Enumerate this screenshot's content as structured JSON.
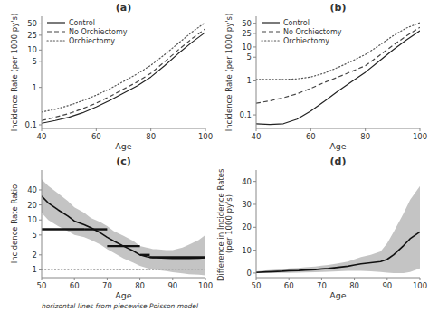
{
  "chart_data": [
    {
      "type": "line",
      "title": "(a)",
      "x_label": "Age",
      "y_label": "Incidence Rate (per 1000 py's)",
      "x": [
        40,
        45,
        50,
        55,
        60,
        65,
        70,
        75,
        80,
        85,
        90,
        95,
        100
      ],
      "series": [
        {
          "name": "Control",
          "color": "#222222",
          "line_style": "solid",
          "values": [
            0.11,
            0.13,
            0.16,
            0.21,
            0.3,
            0.45,
            0.7,
            1.1,
            1.9,
            3.8,
            8.0,
            16,
            30
          ]
        },
        {
          "name": "No Orchiectomy",
          "color": "#444444",
          "line_style": "dashed",
          "values": [
            0.13,
            0.16,
            0.2,
            0.27,
            0.38,
            0.57,
            0.9,
            1.4,
            2.4,
            4.8,
            10,
            20,
            37
          ]
        },
        {
          "name": "Orchiectomy",
          "color": "#555555",
          "line_style": "dotted",
          "values": [
            0.22,
            0.26,
            0.33,
            0.44,
            0.62,
            0.92,
            1.45,
            2.3,
            3.9,
            7.5,
            15,
            30,
            55
          ]
        }
      ],
      "log": "y",
      "xlim": [
        40,
        100
      ],
      "ylim": [
        0.08,
        80
      ],
      "xticks": [
        40,
        60,
        80,
        100
      ],
      "yticks": [
        0.1,
        1,
        5,
        10,
        25,
        50
      ],
      "legend": "upper left",
      "grid": false
    },
    {
      "type": "line",
      "title": "(b)",
      "x_label": "Age",
      "y_label": "Incidence Rate (per 1000 py's)",
      "x": [
        40,
        45,
        50,
        55,
        60,
        65,
        70,
        75,
        80,
        85,
        90,
        95,
        100
      ],
      "series": [
        {
          "name": "Control",
          "color": "#222222",
          "line_style": "solid",
          "values": [
            0.055,
            0.052,
            0.055,
            0.075,
            0.13,
            0.25,
            0.5,
            0.95,
            1.8,
            3.8,
            8.0,
            16,
            30
          ]
        },
        {
          "name": "No Orchiectomy",
          "color": "#444444",
          "line_style": "dashed",
          "values": [
            0.22,
            0.26,
            0.32,
            0.42,
            0.6,
            0.9,
            1.3,
            1.9,
            2.8,
            5.5,
            11,
            21,
            38
          ]
        },
        {
          "name": "Orchiectomy",
          "color": "#555555",
          "line_style": "dotted",
          "values": [
            1.1,
            1.1,
            1.1,
            1.15,
            1.3,
            1.7,
            2.5,
            3.8,
            6.0,
            11,
            21,
            36,
            52
          ]
        }
      ],
      "log": "y",
      "xlim": [
        40,
        100
      ],
      "ylim": [
        0.04,
        80
      ],
      "xticks": [
        40,
        60,
        80,
        100
      ],
      "yticks": [
        0.1,
        1,
        5,
        10,
        25,
        50
      ],
      "legend": "upper left",
      "grid": false
    },
    {
      "type": "line",
      "title": "(c)",
      "x_label": "Age",
      "y_label": "Incidence Rate Ratio",
      "x": [
        50,
        52,
        55,
        58,
        60,
        63,
        65,
        68,
        70,
        72,
        75,
        78,
        80,
        82,
        83,
        84,
        85,
        88,
        90,
        93,
        95,
        98,
        100
      ],
      "series": [
        {
          "type": "area",
          "color": "#b0b0b0",
          "lower": [
            14,
            10,
            7.5,
            6,
            5,
            4.5,
            4,
            3.2,
            2.6,
            2.2,
            1.7,
            1.4,
            1.2,
            1.1,
            1.05,
            1.0,
            1.0,
            0.95,
            0.9,
            0.85,
            0.82,
            0.8,
            0.78
          ],
          "upper": [
            65,
            48,
            34,
            24,
            18,
            14,
            11,
            9,
            7.5,
            6.0,
            4.8,
            3.8,
            3.0,
            2.8,
            2.7,
            2.6,
            2.6,
            2.5,
            2.5,
            2.8,
            3.2,
            4.0,
            5.0
          ]
        },
        {
          "type": "line",
          "color": "#111111",
          "line_style": "solid",
          "values": [
            30,
            22,
            16,
            12,
            9.5,
            8,
            7,
            5.5,
            4.5,
            3.8,
            3.0,
            2.4,
            2.0,
            1.85,
            1.8,
            1.75,
            1.75,
            1.72,
            1.7,
            1.7,
            1.7,
            1.72,
            1.75
          ]
        }
      ],
      "steps": [
        {
          "start": 50,
          "end": 63,
          "value": 6.5
        },
        {
          "start": 63,
          "end": 70,
          "value": 6.5
        },
        {
          "start": 70,
          "end": 80,
          "value": 3.0
        },
        {
          "start": 80,
          "end": 83,
          "value": 2.0
        },
        {
          "start": 83,
          "end": 100,
          "value": 1.8
        }
      ],
      "reference_lines": [
        {
          "value": 1,
          "color": "#aaaaaa",
          "line_style": "dotted"
        }
      ],
      "annotation": "horizontal lines from piecewise Poisson model",
      "log": "y",
      "xlim": [
        50,
        100
      ],
      "ylim": [
        0.7,
        100
      ],
      "xticks": [
        50,
        60,
        70,
        80,
        90,
        100
      ],
      "yticks": [
        1,
        2,
        5,
        10,
        20,
        40
      ],
      "grid": false
    },
    {
      "type": "line",
      "title": "(d)",
      "x_label": "Age",
      "y_label": "Difference in Incidence Rates (per 1000 py's)",
      "x": [
        50,
        53,
        55,
        58,
        60,
        63,
        65,
        68,
        70,
        72,
        75,
        78,
        80,
        82,
        85,
        88,
        90,
        92,
        95,
        97,
        100
      ],
      "series": [
        {
          "type": "area",
          "color": "#b0b0b0",
          "lower": [
            0.0,
            0.0,
            0.0,
            0.1,
            0.1,
            0.2,
            0.3,
            0.4,
            0.5,
            0.6,
            0.8,
            1.0,
            1.0,
            1.0,
            0.8,
            0.5,
            0.2,
            0.0,
            0.0,
            0.5,
            2.0
          ],
          "upper": [
            0.8,
            1.2,
            1.4,
            1.7,
            2.0,
            2.2,
            2.5,
            2.8,
            3.2,
            3.5,
            4.2,
            5.0,
            6.0,
            7.0,
            8.0,
            9.5,
            13,
            18,
            26,
            32,
            38
          ]
        },
        {
          "type": "line",
          "color": "#111111",
          "line_style": "solid",
          "values": [
            0.3,
            0.5,
            0.6,
            0.8,
            1.0,
            1.1,
            1.3,
            1.5,
            1.8,
            2.0,
            2.5,
            3.0,
            3.5,
            4.0,
            4.5,
            5.0,
            6.0,
            8.0,
            12,
            15,
            18
          ]
        }
      ],
      "xlim": [
        50,
        100
      ],
      "ylim": [
        -2,
        45
      ],
      "xticks": [
        50,
        60,
        70,
        80,
        90,
        100
      ],
      "yticks": [
        0,
        10,
        20,
        30,
        40
      ],
      "grid": false
    }
  ]
}
